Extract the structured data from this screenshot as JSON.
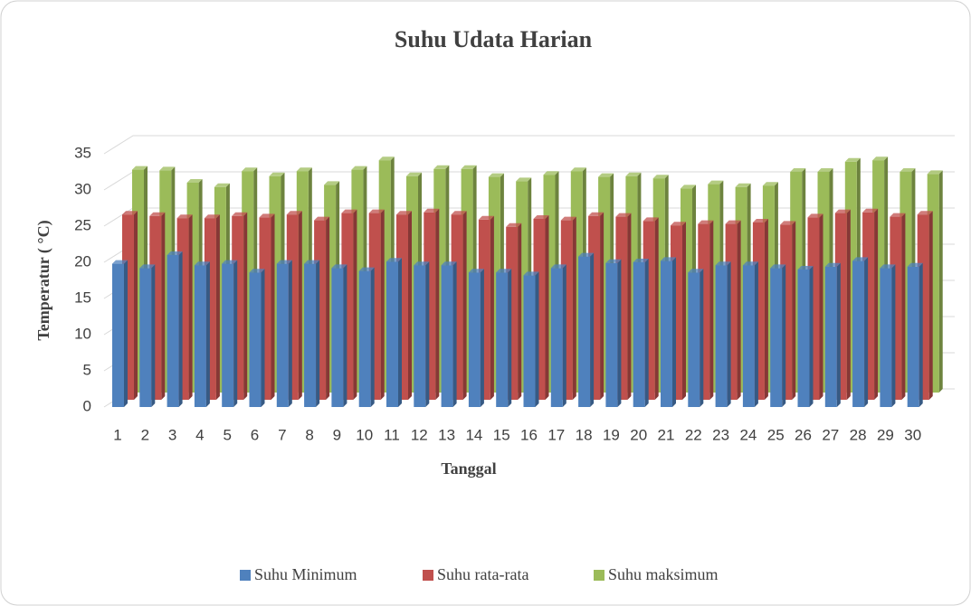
{
  "chart_data": {
    "type": "bar3d",
    "title": "Suhu Udata Harian",
    "x_label": "Tanggal",
    "y_label": "Temperatur ( °C)",
    "categories": [
      "1",
      "2",
      "3",
      "4",
      "5",
      "6",
      "7",
      "8",
      "9",
      "10",
      "11",
      "12",
      "13",
      "14",
      "15",
      "16",
      "17",
      "18",
      "19",
      "20",
      "21",
      "22",
      "23",
      "24",
      "25",
      "26",
      "27",
      "28",
      "29",
      "30"
    ],
    "series": [
      {
        "name": "Suhu Minimum",
        "color": "#4f81bd",
        "values": [
          19.8,
          19.2,
          21,
          19.6,
          19.8,
          18.6,
          19.8,
          19.8,
          19.2,
          18.8,
          20.1,
          19.6,
          19.6,
          18.6,
          18.6,
          18.2,
          19.2,
          20.8,
          19.9,
          20,
          20.2,
          18.6,
          19.6,
          19.6,
          19.2,
          19,
          19.4,
          20.2,
          19.2,
          19.4
        ]
      },
      {
        "name": "Suhu rata-rata",
        "color": "#c0504d",
        "values": [
          25.6,
          25.4,
          25.1,
          25.1,
          25.4,
          25.2,
          25.6,
          24.8,
          25.8,
          25.8,
          25.6,
          25.9,
          25.6,
          24.9,
          23.9,
          25,
          24.8,
          25.4,
          25.3,
          24.7,
          24.1,
          24.3,
          24.3,
          24.5,
          24.2,
          25.2,
          25.8,
          25.9,
          25.3,
          25.6
        ]
      },
      {
        "name": "Suhu maksimum",
        "color": "#9bbb59",
        "values": [
          30.8,
          30.7,
          29,
          28.4,
          30.6,
          29.9,
          30.6,
          28.7,
          30.8,
          32.1,
          29.9,
          30.9,
          30.9,
          29.8,
          29.2,
          30.1,
          30.6,
          29.8,
          29.9,
          29.6,
          28.2,
          28.8,
          28.4,
          28.6,
          30.5,
          30.5,
          31.9,
          32.1,
          30.5,
          30.2
        ]
      }
    ],
    "ylim": [
      0,
      35
    ],
    "yticks": [
      0,
      5,
      10,
      15,
      20,
      25,
      30,
      35
    ],
    "grid": true,
    "legend": "bottom"
  }
}
